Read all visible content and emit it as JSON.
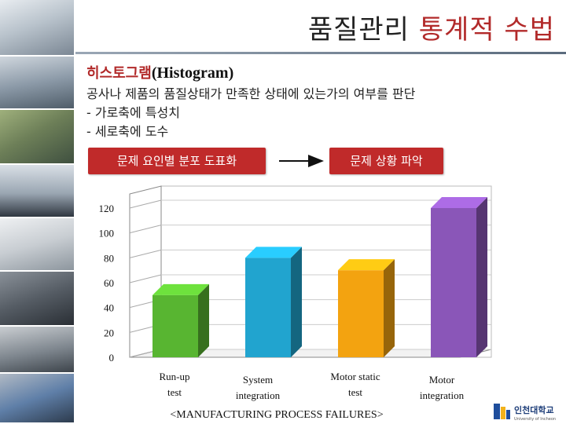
{
  "slide": {
    "title_prefix": "품질관리",
    "title_highlight": "통계적 수법",
    "section_korean": "히스토그램",
    "section_english": "(Histogram)",
    "lines": [
      "공사나 제품의 품질상태가 만족한 상태에 있는가의 여부를 판단",
      "- 가로축에 특성치",
      "- 세로축에 도수"
    ],
    "box_left": "문제 요인별 분포 도표화",
    "box_right": "문제 상황 파악"
  },
  "logo": {
    "text_ko": "인천대학교",
    "text_en": "University of Incheon"
  },
  "colors": {
    "accent_red": "#c02a2a",
    "title_red": "#b22a2a"
  },
  "chart_data": {
    "type": "bar",
    "style": "3d",
    "categories": [
      [
        "Run-up",
        "test"
      ],
      [
        "System",
        "integration"
      ],
      [
        "Motor static",
        "test"
      ],
      [
        "Motor",
        "integration"
      ]
    ],
    "values": [
      50,
      80,
      70,
      120
    ],
    "bar_colors": [
      "#58b531",
      "#21a4cf",
      "#f3a310",
      "#8a56b8"
    ],
    "ylim": [
      0,
      120
    ],
    "yticks": [
      0,
      20,
      40,
      60,
      80,
      100,
      120
    ],
    "xlabel": "<MANUFACTURING PROCESS FAILURES>",
    "grid": true
  }
}
